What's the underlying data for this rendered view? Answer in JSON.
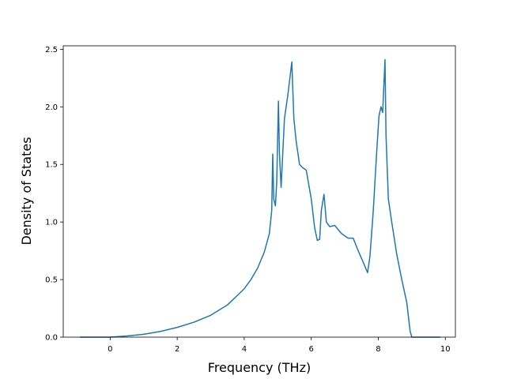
{
  "chart_data": {
    "type": "line",
    "title": "",
    "xlabel": "Frequency (THz)",
    "ylabel": "Density of States",
    "xlim": [
      -1.4,
      10.3
    ],
    "ylim": [
      0,
      2.53
    ],
    "xticks": [
      0,
      2,
      4,
      6,
      8,
      10
    ],
    "xtick_labels": [
      "0",
      "2",
      "4",
      "6",
      "8",
      "10"
    ],
    "yticks": [
      0.0,
      0.5,
      1.0,
      1.5,
      2.0,
      2.5
    ],
    "ytick_labels": [
      "0.0",
      "0.5",
      "1.0",
      "1.5",
      "2.0",
      "2.5"
    ],
    "grid": false,
    "legend": "none",
    "series": [
      {
        "color": "#1f77b4",
        "x": [
          -0.9,
          0.0,
          0.5,
          1.0,
          1.5,
          2.0,
          2.5,
          3.0,
          3.5,
          4.0,
          4.2,
          4.4,
          4.6,
          4.75,
          4.82,
          4.85,
          4.88,
          4.93,
          4.97,
          5.02,
          5.05,
          5.1,
          5.2,
          5.3,
          5.42,
          5.48,
          5.55,
          5.65,
          5.75,
          5.85,
          6.0,
          6.1,
          6.18,
          6.25,
          6.3,
          6.38,
          6.45,
          6.55,
          6.7,
          6.9,
          7.1,
          7.25,
          7.4,
          7.55,
          7.68,
          7.75,
          7.85,
          7.95,
          8.02,
          8.08,
          8.13,
          8.2,
          8.23,
          8.3,
          8.4,
          8.55,
          8.7,
          8.85,
          8.95,
          9.0,
          9.2,
          9.4,
          9.6,
          9.85
        ],
        "y": [
          0.0,
          0.0,
          0.01,
          0.025,
          0.05,
          0.085,
          0.13,
          0.19,
          0.28,
          0.42,
          0.5,
          0.6,
          0.74,
          0.9,
          1.1,
          1.59,
          1.2,
          1.14,
          1.35,
          2.05,
          1.6,
          1.3,
          1.9,
          2.1,
          2.39,
          1.9,
          1.7,
          1.5,
          1.47,
          1.45,
          1.2,
          0.95,
          0.84,
          0.85,
          1.1,
          1.24,
          1.0,
          0.96,
          0.97,
          0.9,
          0.86,
          0.86,
          0.75,
          0.65,
          0.56,
          0.7,
          1.1,
          1.6,
          1.92,
          2.0,
          1.95,
          2.41,
          1.75,
          1.2,
          1.0,
          0.72,
          0.5,
          0.3,
          0.05,
          0.0,
          0.0,
          0.0,
          0.0,
          0.0
        ]
      }
    ]
  }
}
